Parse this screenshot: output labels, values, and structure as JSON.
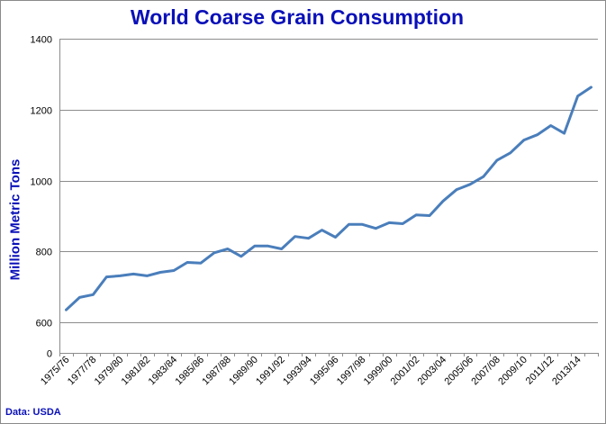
{
  "chart_data": {
    "type": "line",
    "title": "World Coarse Grain Consumption",
    "ylabel": "Million Metric Tons",
    "xlabel": "",
    "source": "Data: USDA",
    "y_ticks": [
      0,
      600,
      800,
      1000,
      1200,
      1400
    ],
    "ylim": [
      0,
      1400
    ],
    "y_axis_broken_between": [
      0,
      600
    ],
    "grid": "horizontal",
    "line_color": "#4a7ebb",
    "x_tick_labels": [
      "1975/76",
      "1977/78",
      "1979/80",
      "1981/82",
      "1983/84",
      "1985/86",
      "1987/88",
      "1989/90",
      "1991/92",
      "1993/94",
      "1995/96",
      "1997/98",
      "1999/00",
      "2001/02",
      "2003/04",
      "2005/06",
      "2007/08",
      "2009/10",
      "2011/12",
      "2013/14"
    ],
    "series": [
      {
        "x": [
          "1975/76",
          "1976/77",
          "1977/78",
          "1978/79",
          "1979/80",
          "1980/81",
          "1981/82",
          "1982/83",
          "1983/84",
          "1984/85",
          "1985/86",
          "1986/87",
          "1987/88",
          "1988/89",
          "1989/90",
          "1990/91",
          "1991/92",
          "1992/93",
          "1993/94",
          "1994/95",
          "1995/96",
          "1996/97",
          "1997/98",
          "1998/99",
          "1999/00",
          "2000/01",
          "2001/02",
          "2002/03",
          "2003/04",
          "2004/05",
          "2005/06",
          "2006/07",
          "2007/08",
          "2008/09",
          "2009/10",
          "2010/11",
          "2011/12",
          "2012/13",
          "2013/14",
          "2014/15"
        ],
        "values": [
          635,
          670,
          678,
          728,
          731,
          736,
          731,
          741,
          746,
          769,
          767,
          796,
          807,
          786,
          815,
          815,
          807,
          842,
          837,
          860,
          840,
          876,
          876,
          865,
          881,
          878,
          903,
          901,
          942,
          974,
          989,
          1011,
          1057,
          1078,
          1114,
          1129,
          1155,
          1133,
          1238,
          1263
        ]
      }
    ]
  }
}
